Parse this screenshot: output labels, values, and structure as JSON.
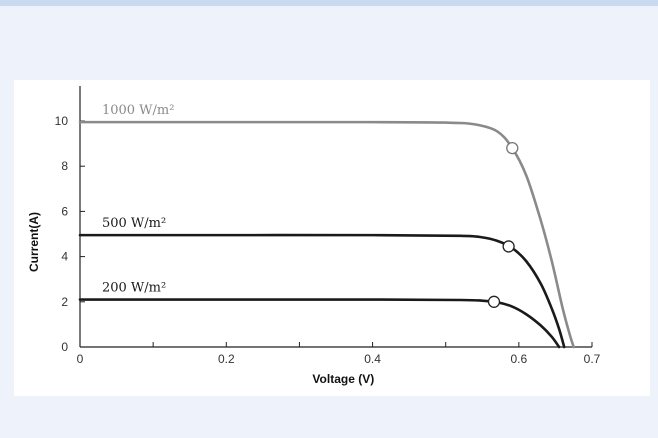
{
  "chart_data": {
    "type": "line",
    "title": "",
    "xlabel": "Voltage  (V)",
    "ylabel": "Current(A)",
    "xlim": [
      0,
      0.7
    ],
    "ylim": [
      0,
      10
    ],
    "x_ticks": [
      "0",
      "0.2",
      "0.4",
      "0.6",
      "0.7"
    ],
    "x_tick_values": [
      0,
      0.2,
      0.4,
      0.6,
      0.7
    ],
    "y_ticks": [
      "0",
      "2",
      "4",
      "6",
      "8",
      "10"
    ],
    "y_tick_values": [
      0,
      2,
      4,
      6,
      8,
      10
    ],
    "grid": false,
    "series": [
      {
        "name": "1000 W/m²",
        "color": "#8a8a8a",
        "x": [
          0,
          0.2,
          0.4,
          0.5,
          0.54,
          0.57,
          0.59,
          0.61,
          0.63,
          0.645,
          0.66,
          0.67,
          0.675
        ],
        "y": [
          9.95,
          9.95,
          9.95,
          9.93,
          9.85,
          9.55,
          8.85,
          7.6,
          5.6,
          3.8,
          1.7,
          0.5,
          0
        ],
        "mpp": [
          0.591,
          8.8
        ]
      },
      {
        "name": "500 W/m²",
        "color": "#1a1a1a",
        "x": [
          0,
          0.2,
          0.4,
          0.52,
          0.55,
          0.57,
          0.59,
          0.61,
          0.63,
          0.645,
          0.655,
          0.662
        ],
        "y": [
          4.95,
          4.95,
          4.95,
          4.92,
          4.85,
          4.7,
          4.4,
          3.8,
          2.8,
          1.7,
          0.8,
          0
        ]
      },
      {
        "name": "200 W/m²",
        "color": "#1a1a1a",
        "x": [
          0,
          0.2,
          0.4,
          0.52,
          0.55,
          0.57,
          0.59,
          0.61,
          0.63,
          0.645,
          0.655
        ],
        "y": [
          2.1,
          2.1,
          2.1,
          2.08,
          2.05,
          1.98,
          1.8,
          1.45,
          0.95,
          0.45,
          0
        ]
      }
    ],
    "mpp_points": [
      {
        "x": 0.591,
        "y": 8.8
      },
      {
        "x": 0.586,
        "y": 4.45
      },
      {
        "x": 0.566,
        "y": 2.0
      }
    ]
  }
}
